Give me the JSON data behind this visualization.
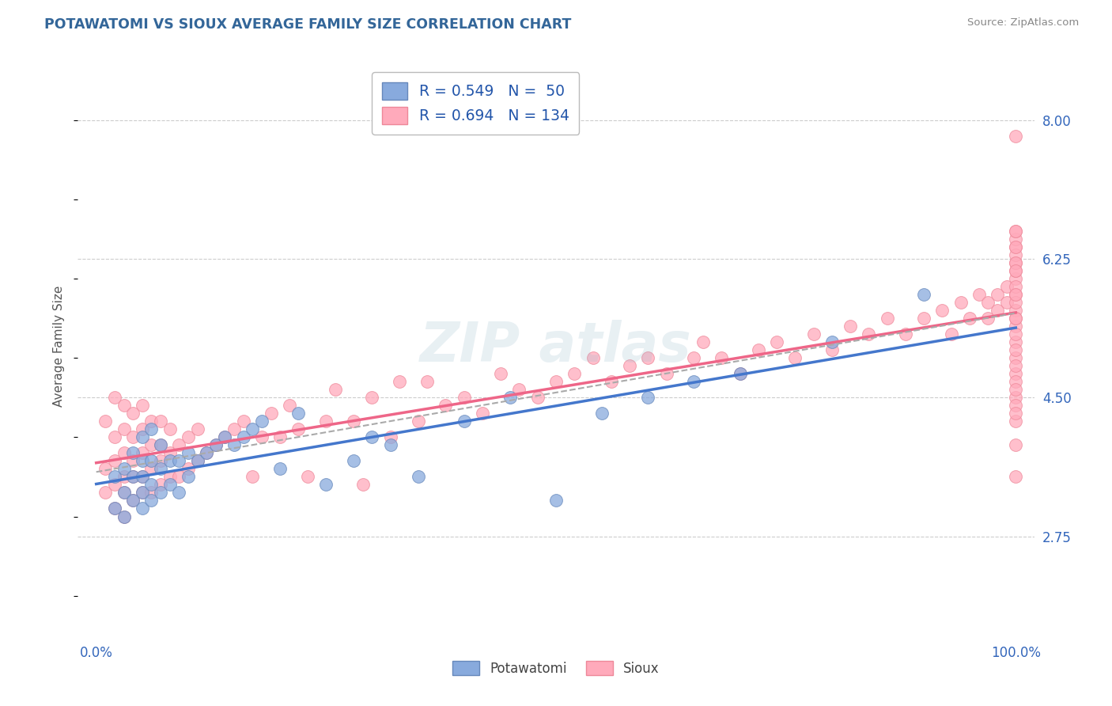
{
  "title": "POTAWATOMI VS SIOUX AVERAGE FAMILY SIZE CORRELATION CHART",
  "source": "Source: ZipAtlas.com",
  "ylabel": "Average Family Size",
  "xlim": [
    -0.02,
    1.02
  ],
  "ylim": [
    1.5,
    8.8
  ],
  "yticks": [
    2.75,
    4.5,
    6.25,
    8.0
  ],
  "background_color": "#ffffff",
  "grid_color": "#cccccc",
  "potawatomi_color": "#88aadd",
  "sioux_color": "#ffaabb",
  "potawatomi_edge_color": "#6688bb",
  "sioux_edge_color": "#ee8899",
  "line_pota_color": "#4477cc",
  "line_sioux_color": "#ee6688",
  "dash_line_color": "#aaaaaa",
  "title_color": "#336699",
  "tick_color": "#3366bb",
  "potawatomi_x": [
    0.02,
    0.02,
    0.03,
    0.03,
    0.03,
    0.04,
    0.04,
    0.04,
    0.05,
    0.05,
    0.05,
    0.05,
    0.05,
    0.06,
    0.06,
    0.06,
    0.06,
    0.07,
    0.07,
    0.07,
    0.08,
    0.08,
    0.09,
    0.09,
    0.1,
    0.1,
    0.11,
    0.12,
    0.13,
    0.14,
    0.15,
    0.16,
    0.17,
    0.18,
    0.2,
    0.22,
    0.25,
    0.28,
    0.3,
    0.32,
    0.35,
    0.4,
    0.45,
    0.5,
    0.55,
    0.6,
    0.65,
    0.7,
    0.8,
    0.9
  ],
  "potawatomi_y": [
    3.5,
    3.1,
    3.0,
    3.3,
    3.6,
    3.2,
    3.5,
    3.8,
    3.1,
    3.3,
    3.5,
    3.7,
    4.0,
    3.2,
    3.4,
    3.7,
    4.1,
    3.3,
    3.6,
    3.9,
    3.4,
    3.7,
    3.3,
    3.7,
    3.5,
    3.8,
    3.7,
    3.8,
    3.9,
    4.0,
    3.9,
    4.0,
    4.1,
    4.2,
    3.6,
    4.3,
    3.4,
    3.7,
    4.0,
    3.9,
    3.5,
    4.2,
    4.5,
    3.2,
    4.3,
    4.5,
    4.7,
    4.8,
    5.2,
    5.8
  ],
  "sioux_x": [
    0.01,
    0.01,
    0.01,
    0.02,
    0.02,
    0.02,
    0.02,
    0.02,
    0.03,
    0.03,
    0.03,
    0.03,
    0.03,
    0.03,
    0.04,
    0.04,
    0.04,
    0.04,
    0.04,
    0.05,
    0.05,
    0.05,
    0.05,
    0.05,
    0.06,
    0.06,
    0.06,
    0.06,
    0.07,
    0.07,
    0.07,
    0.07,
    0.08,
    0.08,
    0.08,
    0.09,
    0.09,
    0.1,
    0.1,
    0.11,
    0.11,
    0.12,
    0.13,
    0.14,
    0.15,
    0.16,
    0.17,
    0.18,
    0.19,
    0.2,
    0.21,
    0.22,
    0.23,
    0.25,
    0.26,
    0.28,
    0.29,
    0.3,
    0.32,
    0.33,
    0.35,
    0.36,
    0.38,
    0.4,
    0.42,
    0.44,
    0.46,
    0.48,
    0.5,
    0.52,
    0.54,
    0.56,
    0.58,
    0.6,
    0.62,
    0.65,
    0.66,
    0.68,
    0.7,
    0.72,
    0.74,
    0.76,
    0.78,
    0.8,
    0.82,
    0.84,
    0.86,
    0.88,
    0.9,
    0.92,
    0.93,
    0.94,
    0.95,
    0.96,
    0.97,
    0.97,
    0.98,
    0.98,
    0.99,
    0.99,
    1.0,
    1.0,
    1.0,
    1.0,
    1.0,
    1.0,
    1.0,
    1.0,
    1.0,
    1.0,
    1.0,
    1.0,
    1.0,
    1.0,
    1.0,
    1.0,
    1.0,
    1.0,
    1.0,
    1.0,
    1.0,
    1.0,
    1.0,
    1.0,
    1.0,
    1.0,
    1.0,
    1.0,
    1.0,
    1.0,
    1.0,
    1.0,
    1.0,
    1.0
  ],
  "sioux_y": [
    3.3,
    3.6,
    4.2,
    3.1,
    3.4,
    3.7,
    4.0,
    4.5,
    3.0,
    3.3,
    3.5,
    3.8,
    4.1,
    4.4,
    3.2,
    3.5,
    3.7,
    4.0,
    4.3,
    3.3,
    3.5,
    3.8,
    4.1,
    4.4,
    3.3,
    3.6,
    3.9,
    4.2,
    3.4,
    3.7,
    3.9,
    4.2,
    3.5,
    3.8,
    4.1,
    3.5,
    3.9,
    3.6,
    4.0,
    3.7,
    4.1,
    3.8,
    3.9,
    4.0,
    4.1,
    4.2,
    3.5,
    4.0,
    4.3,
    4.0,
    4.4,
    4.1,
    3.5,
    4.2,
    4.6,
    4.2,
    3.4,
    4.5,
    4.0,
    4.7,
    4.2,
    4.7,
    4.4,
    4.5,
    4.3,
    4.8,
    4.6,
    4.5,
    4.7,
    4.8,
    5.0,
    4.7,
    4.9,
    5.0,
    4.8,
    5.0,
    5.2,
    5.0,
    4.8,
    5.1,
    5.2,
    5.0,
    5.3,
    5.1,
    5.4,
    5.3,
    5.5,
    5.3,
    5.5,
    5.6,
    5.3,
    5.7,
    5.5,
    5.8,
    5.7,
    5.5,
    5.8,
    5.6,
    5.9,
    5.7,
    3.5,
    3.9,
    4.2,
    4.5,
    4.8,
    5.0,
    5.2,
    5.4,
    5.6,
    5.8,
    6.0,
    6.2,
    6.4,
    6.1,
    6.3,
    6.5,
    6.6,
    6.4,
    6.2,
    6.6,
    4.4,
    4.7,
    5.1,
    5.3,
    5.5,
    5.7,
    5.9,
    4.3,
    4.6,
    4.9,
    7.8,
    6.1,
    5.8,
    5.5
  ]
}
